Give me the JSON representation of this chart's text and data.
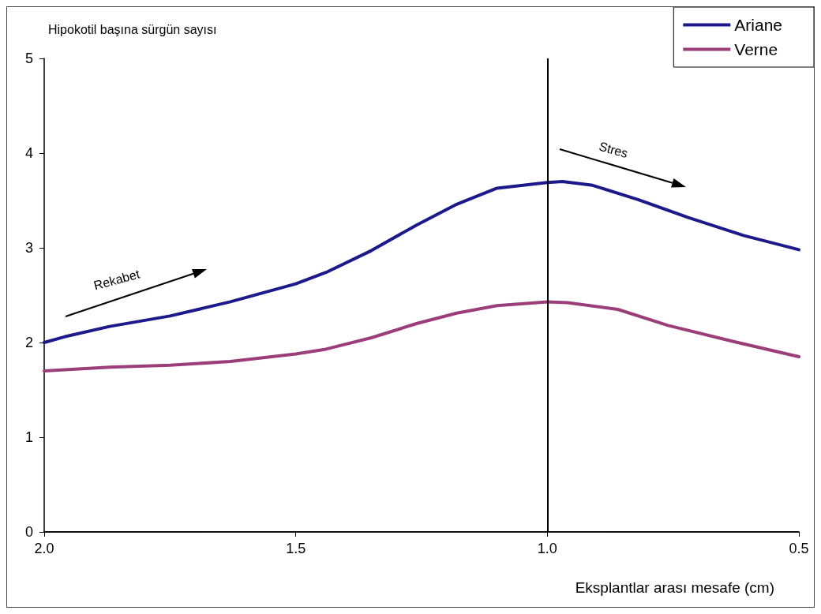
{
  "chart_data": {
    "type": "line",
    "ylabel": "Hipokotil başına sürgün sayısı",
    "xlabel": "Eksplantlar arası mesafe (cm)",
    "xlim": [
      2.0,
      0.5
    ],
    "xticks": [
      {
        "value": 2.0,
        "label": "2.0"
      },
      {
        "value": 1.5,
        "label": "1.5"
      },
      {
        "value": 1.0,
        "label": "1.0"
      },
      {
        "value": 0.5,
        "label": "0.5"
      }
    ],
    "ylim": [
      0,
      5
    ],
    "yticks": [
      0,
      1,
      2,
      3,
      4,
      5
    ],
    "grid": false,
    "legend": "top right",
    "marker": "none",
    "line_style": "solid",
    "series": [
      {
        "name": "Ariane",
        "color": "#1c1a8a",
        "x": [
          2.0,
          1.96,
          1.87,
          1.75,
          1.63,
          1.5,
          1.44,
          1.35,
          1.26,
          1.18,
          1.1,
          1.0,
          0.97,
          0.91,
          0.82,
          0.72,
          0.61,
          0.5
        ],
        "values": [
          2.0,
          2.06,
          2.17,
          2.28,
          2.43,
          2.62,
          2.74,
          2.97,
          3.24,
          3.46,
          3.63,
          3.69,
          3.7,
          3.66,
          3.51,
          3.32,
          3.13,
          2.98
        ]
      },
      {
        "name": "Verne",
        "color": "#9b3d78",
        "x": [
          2.0,
          1.87,
          1.75,
          1.63,
          1.5,
          1.44,
          1.35,
          1.26,
          1.18,
          1.1,
          1.0,
          0.96,
          0.86,
          0.76,
          0.63,
          0.5
        ],
        "values": [
          1.7,
          1.74,
          1.76,
          1.8,
          1.88,
          1.93,
          2.05,
          2.2,
          2.31,
          2.39,
          2.43,
          2.42,
          2.35,
          2.18,
          2.01,
          1.85
        ]
      }
    ],
    "ref_lines": [
      {
        "axis": "x",
        "value": 1.0,
        "color": "#000000",
        "line_style": "solid"
      }
    ],
    "annotations": [
      "Rekabet",
      "Stres"
    ]
  }
}
